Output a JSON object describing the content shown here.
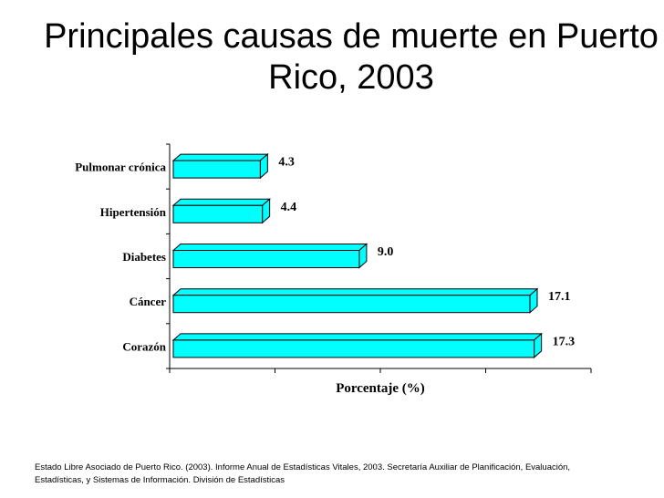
{
  "title": "Principales causas de muerte en Puerto Rico, 2003",
  "source": "Estado Libre Asociado de Puerto Rico. (2003).  Informe Anual de Estadísticas Vitales, 2003. Secretaría Auxiliar de Planificación, Evaluación, Estadísticas, y Sistemas de Información.  División de Estadísticas",
  "colors": {
    "bar_face": "#00ffff",
    "bar_edge": "#000000"
  },
  "chart_data": {
    "type": "bar",
    "orientation": "horizontal",
    "style": "3d",
    "title": "Principales causas de muerte en Puerto Rico, 2003",
    "categories": [
      "Pulmonar crónica",
      "Hipertensión",
      "Diabetes",
      "Cáncer",
      "Corazón"
    ],
    "values": [
      4.3,
      4.4,
      9.0,
      17.1,
      17.3
    ],
    "value_labels": [
      "4.3",
      "4.4",
      "9.0",
      "17.1",
      "17.3"
    ],
    "xlabel": "Porcentaje (%)",
    "ylabel": "",
    "xlim": [
      0,
      20
    ],
    "x_tick_labels_shown": false,
    "grid": false
  }
}
